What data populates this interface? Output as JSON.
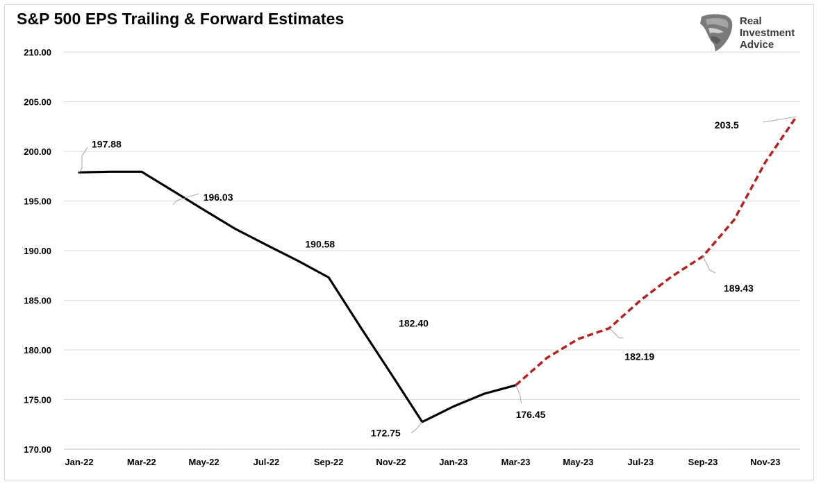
{
  "title": "S&P 500 EPS Trailing & Forward Estimates",
  "logo": {
    "line1": "Real",
    "line2": "Investment",
    "line3": "Advice"
  },
  "colors": {
    "trailing": "#000000",
    "forward": "#b22222",
    "grid": "#d9d9d9"
  },
  "chart_data": {
    "type": "line",
    "title": "S&P 500 EPS Trailing & Forward Estimates",
    "xlabel": "",
    "ylabel": "",
    "ylim": [
      170,
      210
    ],
    "yticks": [
      "170.00",
      "175.00",
      "180.00",
      "185.00",
      "190.00",
      "195.00",
      "200.00",
      "205.00",
      "210.00"
    ],
    "xticks": [
      "Jan-22",
      "Mar-22",
      "May-22",
      "Jul-22",
      "Sep-22",
      "Nov-22",
      "Jan-23",
      "Mar-23",
      "May-23",
      "Jul-23",
      "Sep-23",
      "Nov-23"
    ],
    "grid": true,
    "legend": "none",
    "series": [
      {
        "style": "solid",
        "x": [
          "Jan-22",
          "Feb-22",
          "Mar-22",
          "Apr-22",
          "May-22",
          "Jun-22",
          "Jul-22",
          "Aug-22",
          "Sep-22",
          "Oct-22",
          "Nov-22",
          "Dec-22",
          "Jan-23",
          "Feb-23",
          "Mar-23"
        ],
        "values": [
          197.88,
          197.95,
          197.95,
          196.03,
          194.1,
          192.2,
          190.58,
          189.0,
          187.3,
          182.4,
          177.6,
          172.75,
          174.3,
          175.6,
          176.45
        ]
      },
      {
        "style": "dashed",
        "x": [
          "Mar-23",
          "Apr-23",
          "May-23",
          "Jun-23",
          "Jul-23",
          "Aug-23",
          "Sep-23",
          "Oct-23",
          "Nov-23",
          "Dec-23"
        ],
        "values": [
          176.45,
          179.2,
          181.1,
          182.19,
          185.0,
          187.4,
          189.43,
          193.1,
          198.9,
          203.5
        ]
      }
    ],
    "annotations": [
      {
        "text": "197.88",
        "x": "Jan-22",
        "y": 197.88
      },
      {
        "text": "196.03",
        "x": "Apr-22",
        "y": 196.03
      },
      {
        "text": "190.58",
        "x": "Jul-22",
        "y": 190.58
      },
      {
        "text": "182.40",
        "x": "Oct-22",
        "y": 182.4
      },
      {
        "text": "172.75",
        "x": "Dec-22",
        "y": 172.75
      },
      {
        "text": "176.45",
        "x": "Mar-23",
        "y": 176.45
      },
      {
        "text": "182.19",
        "x": "Jun-23",
        "y": 182.19
      },
      {
        "text": "189.43",
        "x": "Sep-23",
        "y": 189.43
      },
      {
        "text": "203.5",
        "x": "Dec-23",
        "y": 203.5
      }
    ]
  }
}
